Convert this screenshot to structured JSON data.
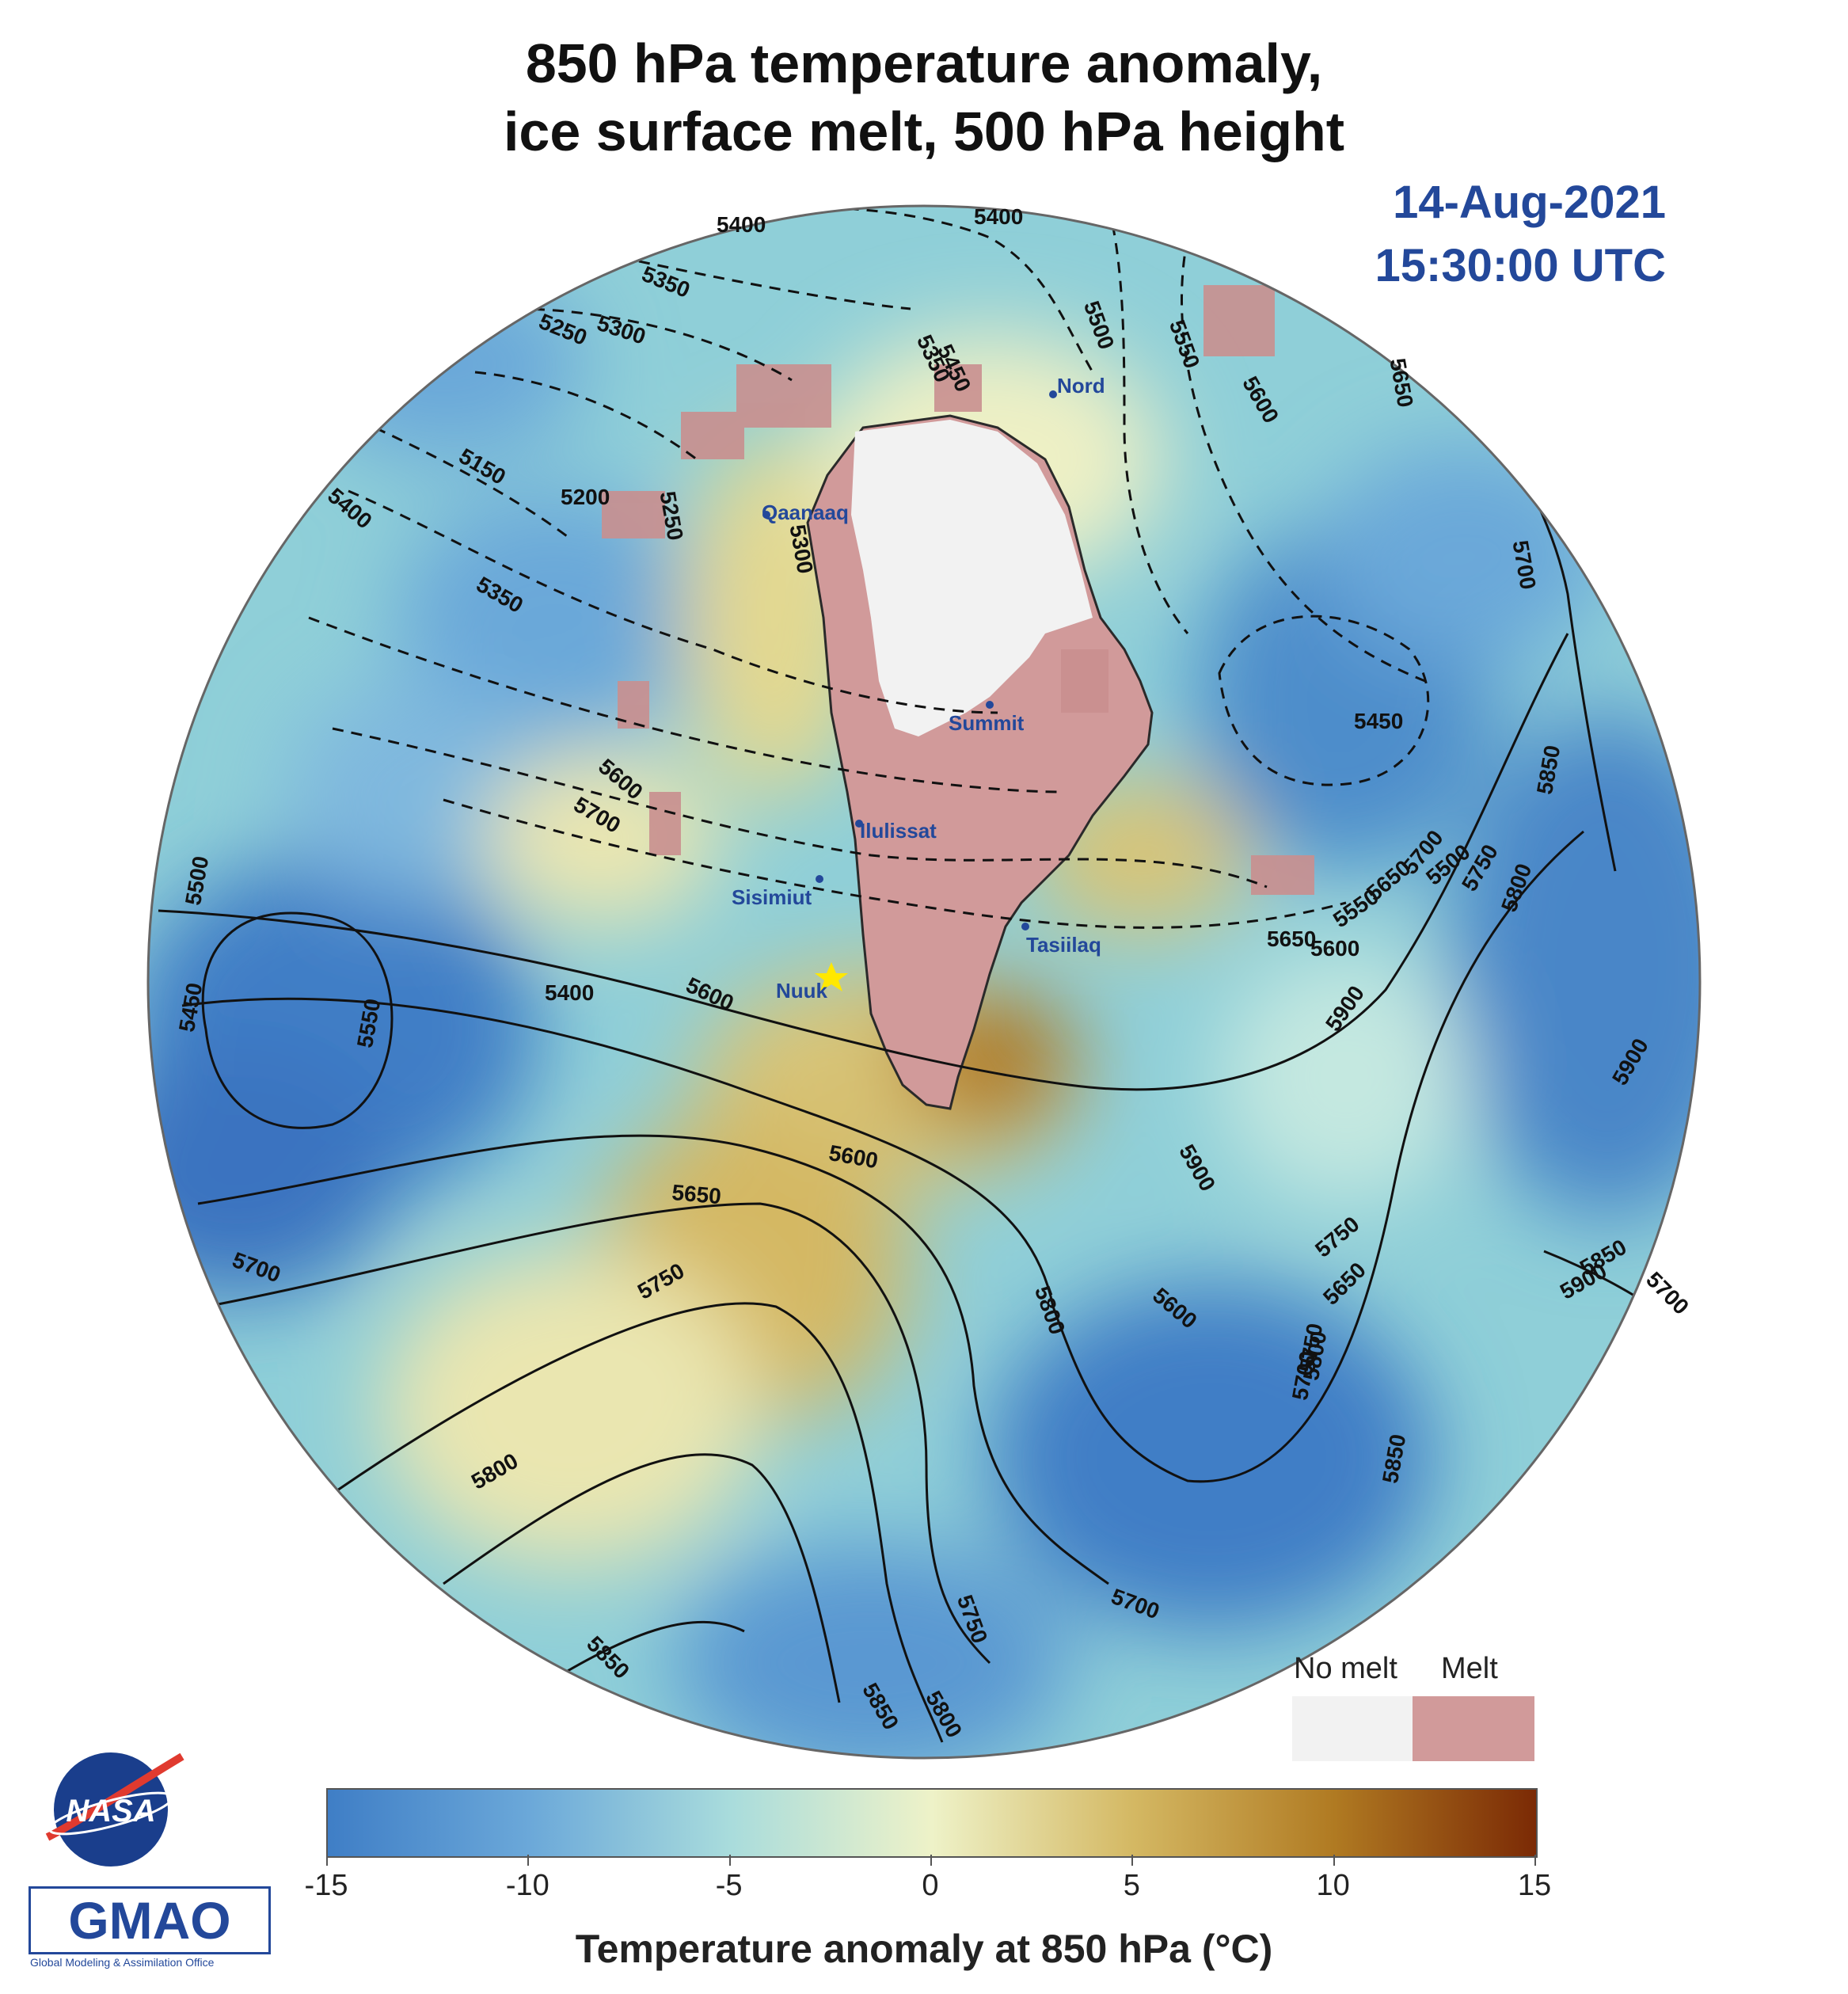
{
  "title": {
    "line1": "850 hPa temperature anomaly,",
    "line2": "ice surface melt, 500 hPa height"
  },
  "timestamp": {
    "date": "14-Aug-2021",
    "time": "15:30:00 UTC"
  },
  "stations": [
    {
      "name": "Nord"
    },
    {
      "name": "Qaanaaq"
    },
    {
      "name": "Summit"
    },
    {
      "name": "Ilulissat"
    },
    {
      "name": "Sisimiut"
    },
    {
      "name": "Tasiilaq"
    },
    {
      "name": "Nuuk"
    }
  ],
  "contour_labels": [
    "5400",
    "5400",
    "5350",
    "5300",
    "5250",
    "5150",
    "5200",
    "5250",
    "5300",
    "5350",
    "5400",
    "5350",
    "5450",
    "5500",
    "5550",
    "5600",
    "5650",
    "5700",
    "5600",
    "5700",
    "5650",
    "5600",
    "5650",
    "5700",
    "5750",
    "5800",
    "5850",
    "5900",
    "5450",
    "5500",
    "5550",
    "5600",
    "5400",
    "5450",
    "5500",
    "5550",
    "5600",
    "5650",
    "5700",
    "5750",
    "5800",
    "5850",
    "5900",
    "5650",
    "5700",
    "5750",
    "5800",
    "5850",
    "5700",
    "5750",
    "5800",
    "5850",
    "5900",
    "5600",
    "5700",
    "5750",
    "5800",
    "5850",
    "5900"
  ],
  "melt_legend": {
    "no_melt_label": "No melt",
    "melt_label": "Melt",
    "no_melt_color": "#f2f2f2",
    "melt_color": "#d19a9a"
  },
  "colorbar": {
    "ticks": [
      "-15",
      "-10",
      "-5",
      "0",
      "5",
      "10",
      "15"
    ],
    "title": "Temperature anomaly at 850 hPa (°C)",
    "range": [
      -15,
      15
    ],
    "colors": [
      "#3f7ec6",
      "#6ba8d9",
      "#a9dcdc",
      "#eef2c8",
      "#d4b863",
      "#b07a22",
      "#7b2a05"
    ]
  },
  "logos": {
    "nasa": "NASA",
    "gmao": "GMAO",
    "gmao_sub": "Global Modeling & Assimilation Office"
  }
}
